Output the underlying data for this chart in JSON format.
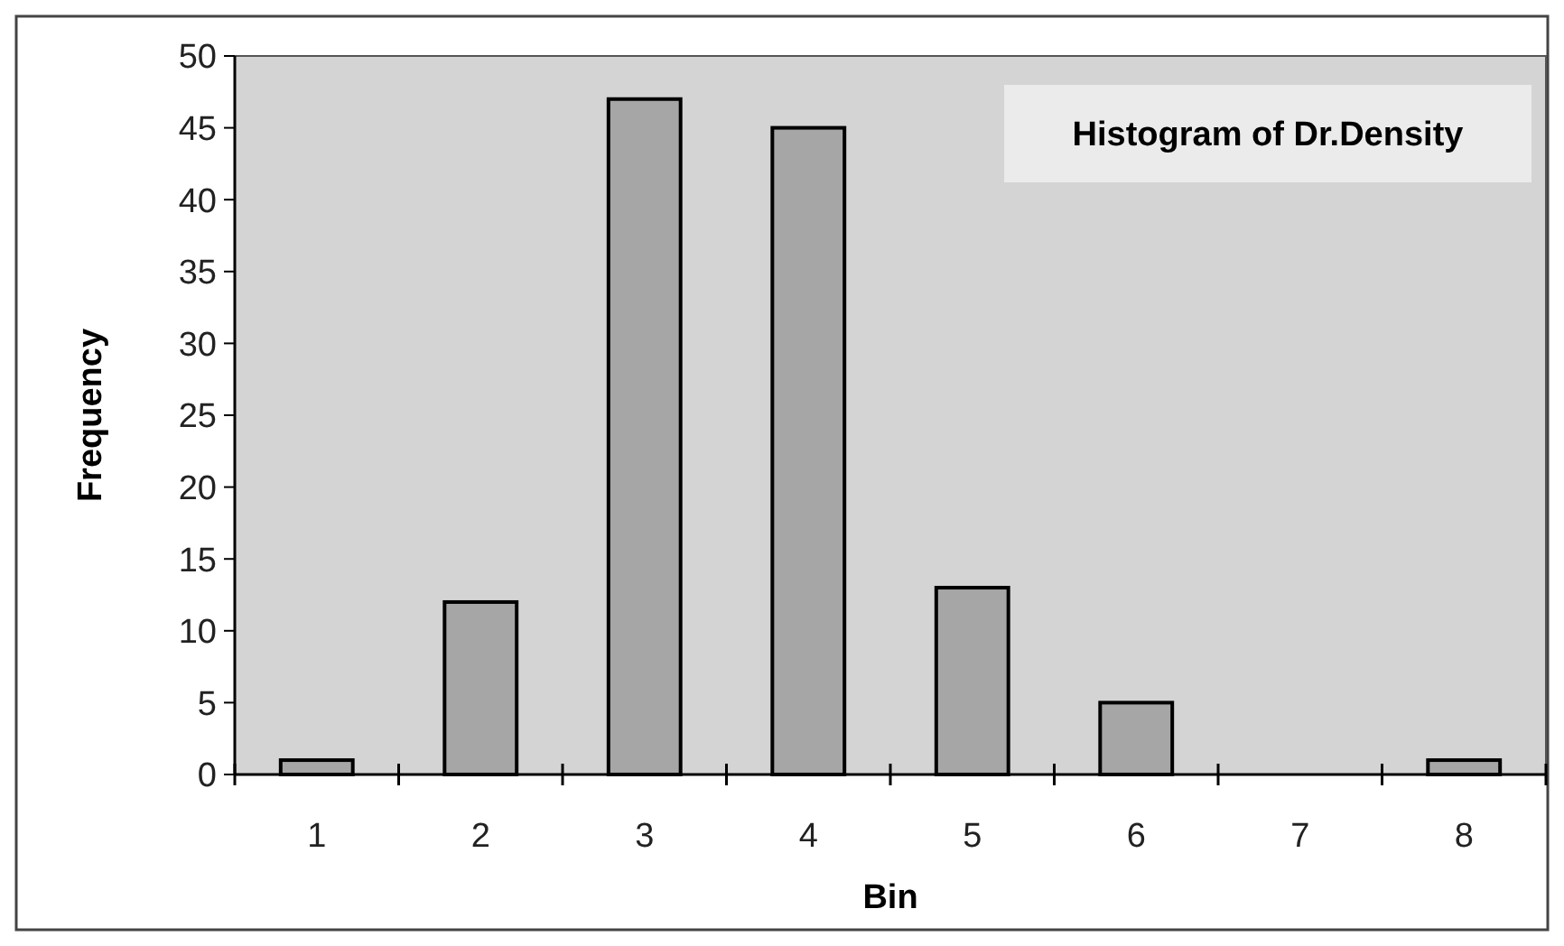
{
  "chart_data": {
    "type": "bar",
    "title": "Histogram of Dr.Density",
    "xlabel": "Bin",
    "ylabel": "Frequency",
    "categories": [
      "1",
      "2",
      "3",
      "4",
      "5",
      "6",
      "7",
      "8"
    ],
    "values": [
      1,
      12,
      47,
      45,
      13,
      5,
      0,
      1
    ],
    "color": "#a6a6a6",
    "ylim": [
      0,
      50
    ],
    "yticks": [
      0,
      5,
      10,
      15,
      20,
      25,
      30,
      35,
      40,
      45,
      50
    ],
    "grid": false
  }
}
